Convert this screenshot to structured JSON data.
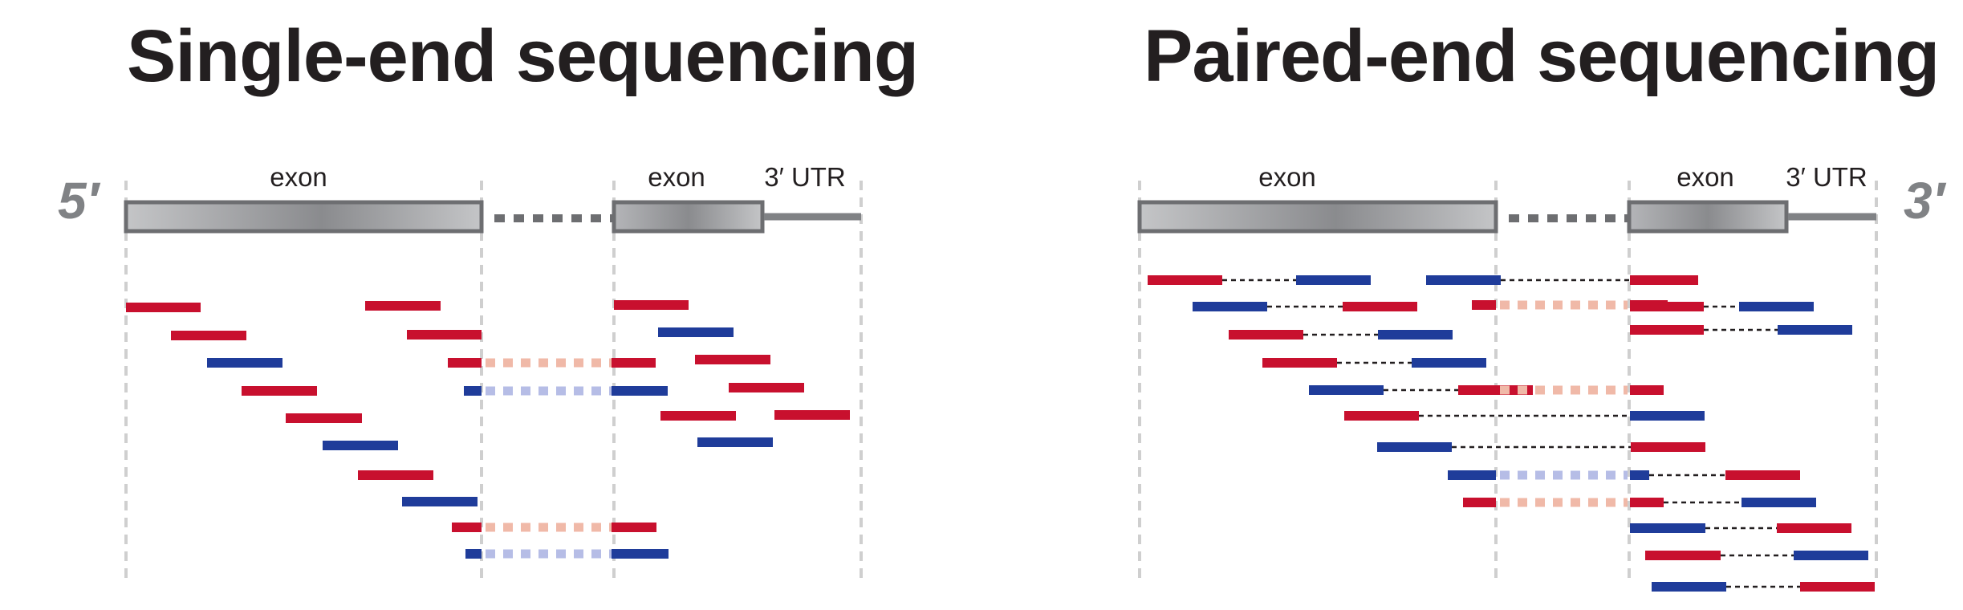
{
  "titles": {
    "left": "Single-end sequencing",
    "right": "Paired-end sequencing"
  },
  "labels": {
    "exon": "exon",
    "utr": "3′ UTR",
    "five_prime": "5′",
    "three_prime": "3′"
  },
  "colors": {
    "forward_read": "#c8102e",
    "reverse_read": "#1f3c9a",
    "forward_read_faded": "#f0b9a8",
    "reverse_read_faded": "#b6bde6",
    "exon_fill": "#9a9b9e",
    "outline": "#6d6e71",
    "guide": "#cfcfcf",
    "text": "#231f20"
  }
}
